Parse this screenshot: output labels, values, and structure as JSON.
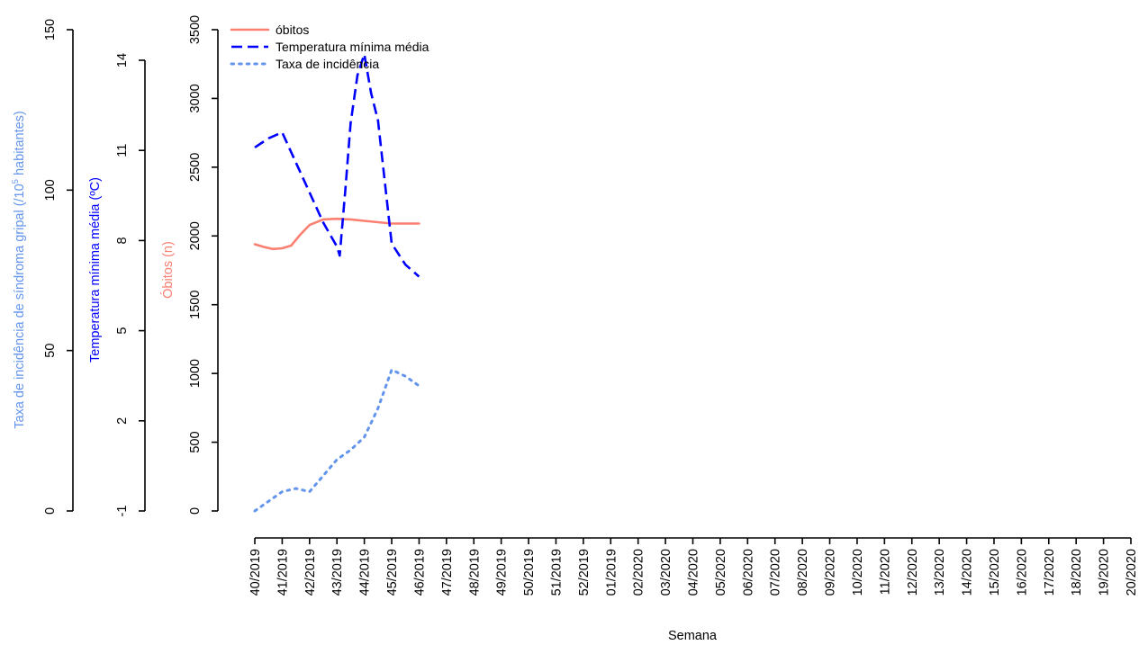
{
  "chart_data": {
    "type": "line",
    "xlabel": "Semana",
    "categories": [
      "40/2019",
      "41/2019",
      "42/2019",
      "43/2019",
      "44/2019",
      "45/2019",
      "46/2019",
      "47/2019",
      "48/2019",
      "49/2019",
      "50/2019",
      "51/2019",
      "52/2019",
      "01/2019",
      "02/2020",
      "03/2020",
      "04/2020",
      "05/2020",
      "06/2020",
      "07/2020",
      "08/2020",
      "09/2020",
      "10/2020",
      "11/2020",
      "12/2020",
      "13/2020",
      "14/2020",
      "15/2020",
      "16/2020",
      "17/2020",
      "18/2020",
      "19/2020",
      "20/2020"
    ],
    "axes": {
      "deaths": {
        "label": "Óbitos (n)",
        "ylim": [
          0,
          3500
        ],
        "ticks": [
          0,
          500,
          1000,
          1500,
          2000,
          2500,
          3000,
          3500
        ],
        "color": "#FA8072"
      },
      "temperature": {
        "label": "Temperatura mínima média (ºC)",
        "ylim": [
          -1,
          14
        ],
        "ticks": [
          -1,
          2,
          5,
          8,
          11,
          14
        ],
        "color": "#0000FF"
      },
      "incidence": {
        "label_main": "Taxa de incidência de síndroma gripal (/10",
        "label_sup": "5",
        "label_end": " habitantes)",
        "ylim": [
          0,
          150
        ],
        "ticks": [
          0,
          50,
          100,
          150
        ],
        "color": "#6495ED"
      }
    },
    "series": [
      {
        "name": "óbitos",
        "axis": "deaths",
        "style": "solid",
        "color": "#FA8072",
        "x": [
          0,
          0.33,
          0.66,
          1,
          1.33,
          1.66,
          2,
          2.5,
          3,
          3.5,
          4,
          4.5,
          5,
          5.5,
          6
        ],
        "values": [
          1940,
          1920,
          1905,
          1910,
          1930,
          2010,
          2080,
          2120,
          2125,
          2120,
          2110,
          2100,
          2090,
          2090,
          2090
        ]
      },
      {
        "name": "Temperatura mínima média",
        "axis": "temperature",
        "style": "dashed",
        "color": "#0000FF",
        "x": [
          0,
          0.5,
          1,
          1.5,
          2,
          2.5,
          3,
          3.1,
          3.3,
          3.5,
          3.75,
          4,
          4.25,
          4.5,
          5,
          5.5,
          6
        ],
        "values": [
          11.1,
          11.4,
          11.6,
          10.6,
          9.6,
          8.6,
          7.8,
          7.5,
          9.6,
          11.9,
          13.5,
          14.2,
          12.9,
          12.0,
          7.9,
          7.2,
          6.8
        ]
      },
      {
        "name": "Taxa de incidência",
        "axis": "incidence",
        "style": "dotted",
        "color": "#6495ED",
        "x": [
          0,
          0.5,
          1,
          1.5,
          2,
          2.5,
          3,
          3.5,
          4,
          4.5,
          5,
          5.5,
          6
        ],
        "values": [
          0,
          3,
          6,
          7,
          6,
          11,
          16,
          19,
          23,
          32,
          44,
          42,
          39
        ]
      }
    ],
    "legend_position": "top-left"
  }
}
